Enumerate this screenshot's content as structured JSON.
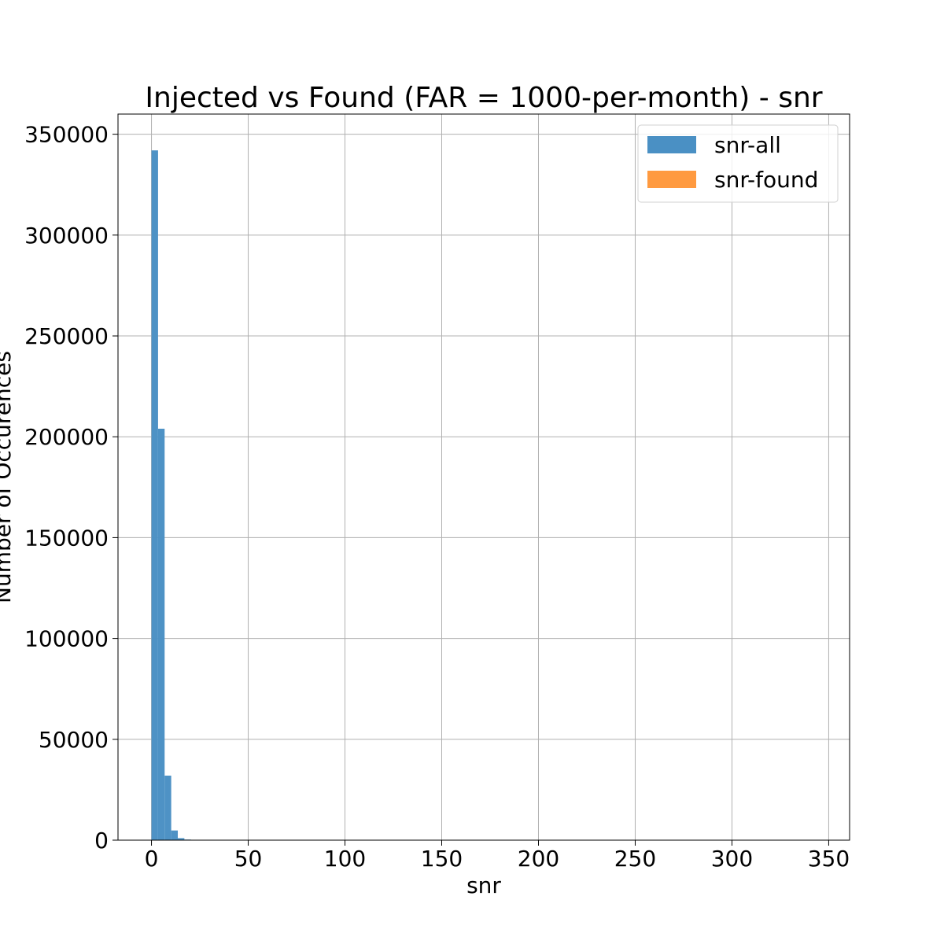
{
  "chart_data": {
    "type": "bar",
    "title": "Injected vs Found (FAR = 1000-per-month) - snr",
    "xlabel": "snr",
    "ylabel": "Number of Occurences",
    "xlim": [
      -17.3,
      360.8
    ],
    "ylim": [
      0,
      360000
    ],
    "x_ticks": [
      0,
      50,
      100,
      150,
      200,
      250,
      300,
      350
    ],
    "y_ticks": [
      0,
      50000,
      100000,
      150000,
      200000,
      250000,
      300000,
      350000
    ],
    "grid": true,
    "legend_position": "top-right",
    "bin_width": 3.4,
    "series": [
      {
        "name": "snr-all",
        "color": "#4a90c4",
        "bins": [
          {
            "x0": 0.0,
            "x1": 3.4,
            "value": 342000
          },
          {
            "x0": 3.4,
            "x1": 6.8,
            "value": 204000
          },
          {
            "x0": 6.8,
            "x1": 10.2,
            "value": 32000
          },
          {
            "x0": 10.2,
            "x1": 13.6,
            "value": 4800
          },
          {
            "x0": 13.6,
            "x1": 17.0,
            "value": 1000
          },
          {
            "x0": 17.0,
            "x1": 20.4,
            "value": 300
          },
          {
            "x0": 20.4,
            "x1": 23.8,
            "value": 100
          }
        ]
      },
      {
        "name": "snr-found",
        "color": "#ff9a40",
        "bins": []
      }
    ]
  }
}
